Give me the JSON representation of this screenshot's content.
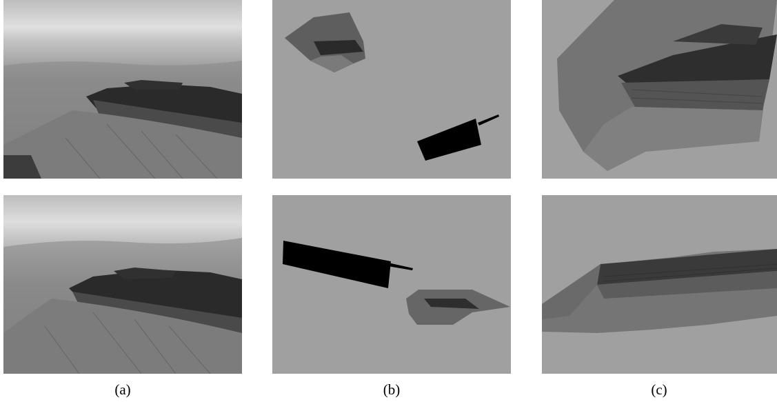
{
  "figure": {
    "captions": {
      "a": "(a)",
      "b": "(b)",
      "c": "(c)"
    },
    "colors": {
      "page_background": "#ffffff",
      "panel_gray": "#a0a0a0",
      "sky": "#d9d9d9",
      "terrain_light": "#8a8a8a",
      "terrain_dark": "#3a3a3a",
      "shadow": "#1e1e1e",
      "black_mask": "#000000"
    }
  }
}
